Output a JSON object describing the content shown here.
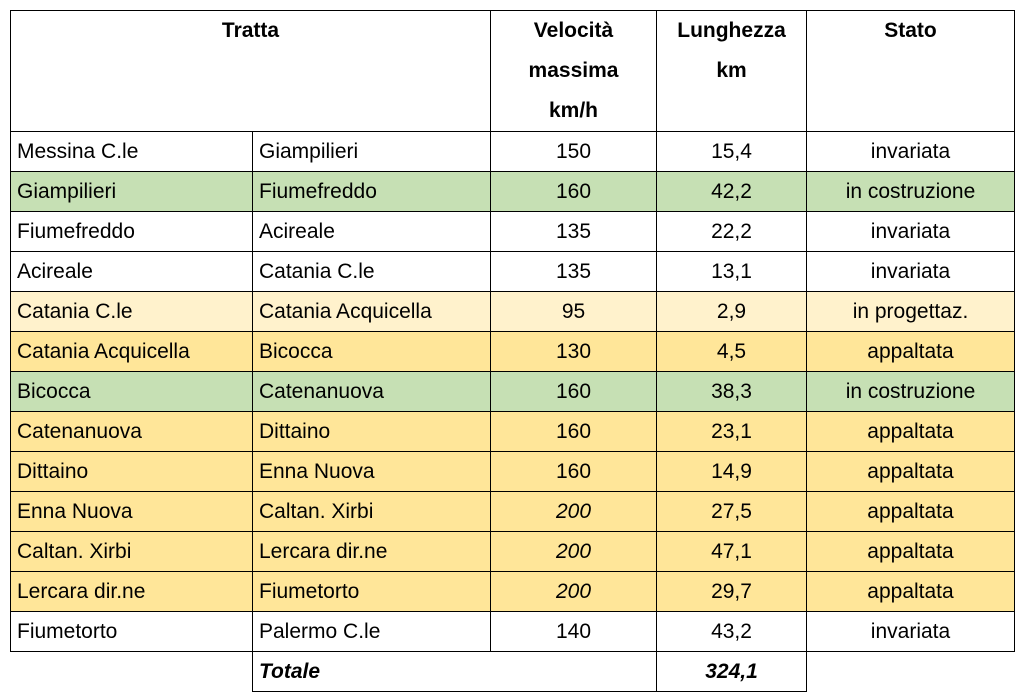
{
  "table": {
    "header": {
      "tratta": "Tratta",
      "velocita": [
        "Velocità",
        "massima",
        "km/h"
      ],
      "lunghezza": [
        "Lunghezza",
        "km"
      ],
      "stato": "Stato"
    },
    "rows": [
      {
        "from": "Messina C.le",
        "to": "Giampilieri",
        "speed": "150",
        "length": "15,4",
        "status": "invariata",
        "color": "#ffffff"
      },
      {
        "from": "Giampilieri",
        "to": "Fiumefreddo",
        "speed": "160",
        "length": "42,2",
        "status": "in costruzione",
        "color": "#c6e0b4"
      },
      {
        "from": "Fiumefreddo",
        "to": "Acireale",
        "speed": "135",
        "length": "22,2",
        "status": "invariata",
        "color": "#ffffff"
      },
      {
        "from": "Acireale",
        "to": "Catania C.le",
        "speed": "135",
        "length": "13,1",
        "status": "invariata",
        "color": "#ffffff"
      },
      {
        "from": "Catania C.le",
        "to": "Catania Acquicella",
        "speed": "95",
        "length": "2,9",
        "status": "in progettaz.",
        "color": "#fff2cc"
      },
      {
        "from": "Catania Acquicella",
        "to": "Bicocca",
        "speed": "130",
        "length": "4,5",
        "status": "appaltata",
        "color": "#ffe699"
      },
      {
        "from": "Bicocca",
        "to": "Catenanuova",
        "speed": "160",
        "length": "38,3",
        "status": "in costruzione",
        "color": "#c6e0b4"
      },
      {
        "from": "Catenanuova",
        "to": "Dittaino",
        "speed": "160",
        "length": "23,1",
        "status": "appaltata",
        "color": "#ffe699"
      },
      {
        "from": "Dittaino",
        "to": "Enna Nuova",
        "speed": "160",
        "length": "14,9",
        "status": "appaltata",
        "color": "#ffe699"
      },
      {
        "from": "Enna Nuova",
        "to": "Caltan. Xirbi",
        "speed": "200",
        "length": "27,5",
        "status": "appaltata",
        "color": "#ffe699",
        "speed_italic": true
      },
      {
        "from": "Caltan. Xirbi",
        "to": "Lercara dir.ne",
        "speed": "200",
        "length": "47,1",
        "status": "appaltata",
        "color": "#ffe699",
        "speed_italic": true
      },
      {
        "from": "Lercara dir.ne",
        "to": "Fiumetorto",
        "speed": "200",
        "length": "29,7",
        "status": "appaltata",
        "color": "#ffe699",
        "speed_italic": true
      },
      {
        "from": "Fiumetorto",
        "to": "Palermo C.le",
        "speed": "140",
        "length": "43,2",
        "status": "invariata",
        "color": "#ffffff"
      }
    ],
    "total": {
      "label": "Totale",
      "value": "324,1"
    }
  }
}
